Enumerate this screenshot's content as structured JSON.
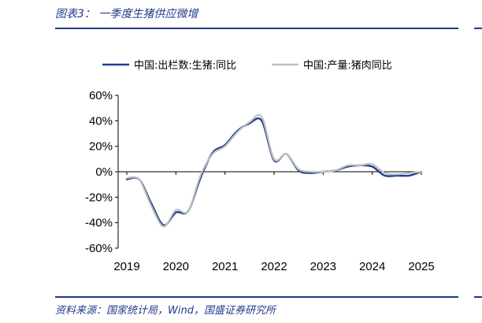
{
  "header": {
    "title": "图表3：  一季度生猪供应微增"
  },
  "footer": {
    "source": "资料来源：国家统计局，Wind，国盛证券研究所"
  },
  "chart_data": {
    "type": "line",
    "title": "",
    "xlabel": "",
    "ylabel": "",
    "xlim": [
      2019,
      2025
    ],
    "ylim": [
      -60,
      60
    ],
    "x_ticks": [
      "2019",
      "2020",
      "2021",
      "2022",
      "2023",
      "2024",
      "2025"
    ],
    "y_ticks": [
      "60%",
      "40%",
      "20%",
      "0%",
      "-20%",
      "-40%",
      "-60%"
    ],
    "y_tick_values": [
      60,
      40,
      20,
      0,
      -20,
      -40,
      -60
    ],
    "x_tick_values": [
      2019,
      2020,
      2021,
      2022,
      2023,
      2024,
      2025
    ],
    "grid": false,
    "legend_position": "top",
    "series": [
      {
        "name": "中国:出栏数:生猪:同比",
        "color": "#1f3f94",
        "x": [
          2019.0,
          2019.25,
          2019.5,
          2019.75,
          2020.0,
          2020.25,
          2020.5,
          2020.75,
          2021.0,
          2021.25,
          2021.5,
          2021.75,
          2022.0,
          2022.25,
          2022.5,
          2022.75,
          2023.0,
          2023.25,
          2023.5,
          2023.75,
          2024.0,
          2024.25,
          2024.5,
          2024.75,
          2025.0
        ],
        "y": [
          -6,
          -6,
          -25,
          -42,
          -32,
          -31,
          -5,
          15,
          21,
          32,
          38,
          40,
          9,
          14,
          1,
          -1,
          0,
          1,
          4,
          5,
          4,
          -3,
          -3,
          -3,
          0
        ]
      },
      {
        "name": "中国:产量:猪肉同比",
        "color": "#c0c0c0",
        "x": [
          2019.0,
          2019.25,
          2019.5,
          2019.75,
          2020.0,
          2020.25,
          2020.5,
          2020.75,
          2021.0,
          2021.25,
          2021.5,
          2021.75,
          2022.0,
          2022.25,
          2022.5,
          2022.75,
          2023.0,
          2023.25,
          2023.5,
          2023.75,
          2024.0,
          2024.25,
          2024.5,
          2024.75,
          2025.0
        ],
        "y": [
          -5,
          -6,
          -27,
          -43,
          -30,
          -31,
          -3,
          14,
          20,
          31,
          39,
          43,
          10,
          14,
          2,
          0,
          0,
          1,
          5,
          5,
          6,
          -1,
          -2,
          -1,
          0
        ]
      }
    ]
  }
}
